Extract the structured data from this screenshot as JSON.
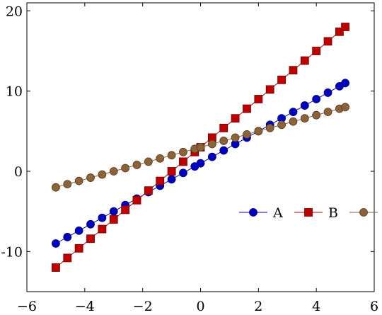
{
  "chart_data": {
    "type": "line",
    "title": "",
    "xlabel": "",
    "ylabel": "",
    "xlim": [
      -6,
      6
    ],
    "ylim": [
      -15,
      21
    ],
    "xticks": [
      -6,
      -4,
      -2,
      0,
      2,
      4,
      6
    ],
    "yticks": [
      -10,
      0,
      10,
      20
    ],
    "xtick_labels": [
      "−6",
      "−4",
      "−2",
      "0",
      "2",
      "4",
      "6"
    ],
    "ytick_labels": [
      "-10",
      "0",
      "10",
      "20"
    ],
    "grid": false,
    "legend_position": "right, mid-lower, horizontal, no frame",
    "x": [
      -5,
      -4.6,
      -4.2,
      -3.8,
      -3.4,
      -3,
      -2.6,
      -2.2,
      -1.8,
      -1.4,
      -1,
      -0.6,
      -0.2,
      0,
      0.4,
      0.8,
      1.2,
      1.6,
      2,
      2.4,
      2.8,
      3.2,
      3.6,
      4,
      4.4,
      4.8,
      5
    ],
    "series": [
      {
        "name": "A",
        "color": "#0000bf",
        "marker": "circle",
        "values": [
          -9,
          -8.2,
          -7.4,
          -6.6,
          -5.8,
          -5,
          -4.2,
          -3.4,
          -2.6,
          -1.8,
          -1,
          -0.2,
          0.6,
          1,
          1.8,
          2.6,
          3.4,
          4.2,
          5,
          5.8,
          6.6,
          7.4,
          8.2,
          9,
          9.8,
          10.6,
          11
        ]
      },
      {
        "name": "B",
        "color": "#bf0000",
        "marker": "square",
        "values": [
          -12,
          -10.8,
          -9.6,
          -8.4,
          -7.2,
          -6,
          -4.8,
          -3.6,
          -2.4,
          -1.2,
          0,
          1.2,
          2.4,
          3,
          4.2,
          5.4,
          6.6,
          7.8,
          9,
          10.2,
          11.4,
          12.6,
          13.8,
          15,
          16.2,
          17.4,
          18
        ]
      },
      {
        "name": "",
        "color": "#8c6239",
        "marker": "circle",
        "values": [
          -2,
          -1.6,
          -1.2,
          -0.8,
          -0.4,
          0,
          0.4,
          0.8,
          1.2,
          1.6,
          2,
          2.4,
          2.8,
          3,
          3.4,
          3.8,
          4.2,
          4.6,
          5,
          5.4,
          5.8,
          6.2,
          6.6,
          7,
          7.4,
          7.8,
          8
        ]
      }
    ]
  }
}
